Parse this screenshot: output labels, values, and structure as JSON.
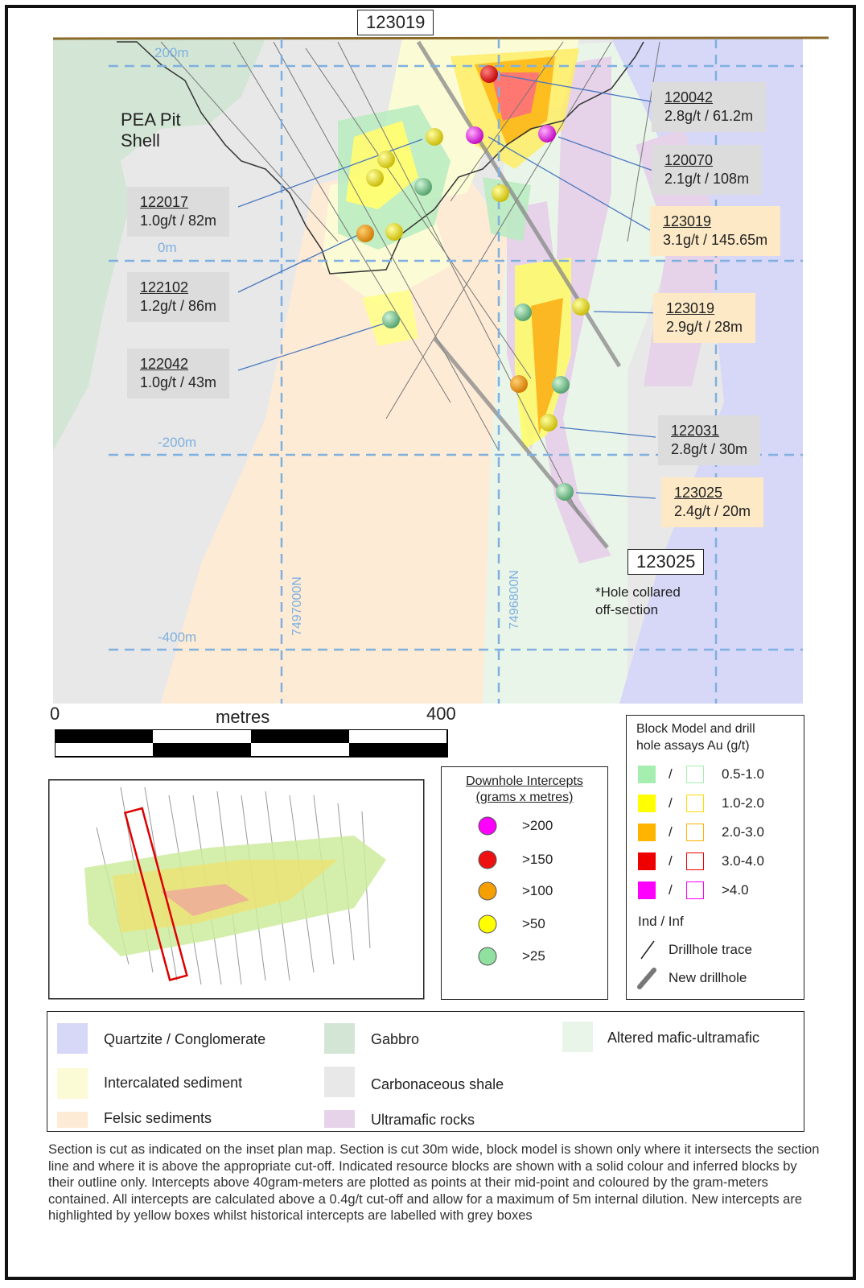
{
  "section": {
    "top_hole_label": "123019",
    "bottom_hole_label": "123025",
    "collar_note_line1": "*Hole collared",
    "collar_note_line2": "off-section",
    "pit_label_line1": "PEA Pit",
    "pit_label_line2": "Shell",
    "elevations": [
      "200m",
      "0m",
      "-200m",
      "-400m"
    ],
    "northings": [
      "7497000N",
      "7496800N"
    ]
  },
  "intercept_callouts": [
    {
      "id": "120042",
      "value": "2.8g/t / 61.2m",
      "style": "historical"
    },
    {
      "id": "120070",
      "value": "2.1g/t / 108m",
      "style": "historical"
    },
    {
      "id": "123019",
      "value": "3.1g/t / 145.65m",
      "style": "new"
    },
    {
      "id": "122017",
      "value": "1.0g/t / 82m",
      "style": "historical"
    },
    {
      "id": "122102",
      "value": "1.2g/t / 86m",
      "style": "historical"
    },
    {
      "id": "123019",
      "value": "2.9g/t / 28m",
      "style": "new"
    },
    {
      "id": "122042",
      "value": "1.0g/t / 43m",
      "style": "historical"
    },
    {
      "id": "122031",
      "value": "2.8g/t / 30m",
      "style": "historical"
    },
    {
      "id": "123025",
      "value": "2.4g/t / 20m",
      "style": "new"
    }
  ],
  "scale_bar": {
    "start": "0",
    "unit": "metres",
    "end": "400"
  },
  "downhole_legend": {
    "title_line1": "Downhole Intercepts",
    "title_line2": "(grams x metres)",
    "items": [
      {
        "label": ">200",
        "color": "#ff00ff"
      },
      {
        "label": ">150",
        "color": "#ee1111"
      },
      {
        "label": ">100",
        "color": "#f5a000"
      },
      {
        "label": ">50",
        "color": "#ffff00"
      },
      {
        "label": ">25",
        "color": "#90e0a0"
      }
    ]
  },
  "block_legend": {
    "title_line1": "Block Model and drill",
    "title_line2": "hole assays Au (g/t)",
    "items": [
      {
        "label": "0.5-1.0",
        "color": "#a6eeb0"
      },
      {
        "label": "1.0-2.0",
        "color": "#ffff00"
      },
      {
        "label": "2.0-3.0",
        "color": "#ffb400"
      },
      {
        "label": "3.0-4.0",
        "color": "#ee0000"
      },
      {
        "label": ">4.0",
        "color": "#ff00ff"
      }
    ],
    "separator": "/",
    "ind_inf": "Ind / Inf",
    "drillhole_trace": "Drillhole trace",
    "new_drillhole": "New drillhole"
  },
  "geology_legend": [
    {
      "label": "Quartzite / Conglomerate",
      "color": "#d7d7f8"
    },
    {
      "label": "Gabbro",
      "color": "#d3e6d6"
    },
    {
      "label": "Altered mafic-ultramafic",
      "color": "#eaf5ea"
    },
    {
      "label": "Intercalated sediment",
      "color": "#fbfbd6"
    },
    {
      "label": "Carbonaceous shale",
      "color": "#e8e8e8"
    },
    {
      "label": "Felsic sediments",
      "color": "#fdebd6"
    },
    {
      "label": "Ultramafic rocks",
      "color": "#e6d3e9"
    }
  ],
  "footnote": "Section is cut as indicated on the inset plan map. Section is cut 30m wide, block model is shown only where it intersects the section line and where it is above the appropriate cut-off. Indicated resource blocks are shown with a solid colour and inferred blocks by their outline only. Intercepts above 40gram-meters are plotted as points at their mid-point and coloured by the gram-meters contained. All intercepts are calculated above a 0.4g/t cut-off and allow for a maximum of 5m internal dilution. New intercepts are highlighted by yellow boxes whilst historical intercepts are labelled with grey boxes"
}
